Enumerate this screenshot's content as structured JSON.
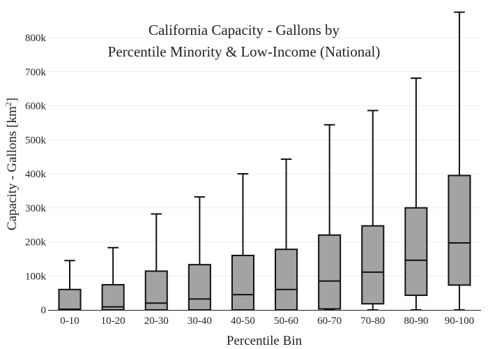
{
  "chart_data": {
    "type": "box",
    "title_lines": [
      "California Capacity - Gallons by",
      "Percentile Minority & Low-Income (National)"
    ],
    "xlabel": "Percentile Bin",
    "ylabel_main": "Capacity - Gallons  [km",
    "ylabel_sup": "2",
    "ylabel_end": "]",
    "ylim": [
      0,
      880000
    ],
    "yticks": [
      0,
      100000,
      200000,
      300000,
      400000,
      500000,
      600000,
      700000,
      800000
    ],
    "ytick_labels": [
      "0",
      "100k",
      "200k",
      "300k",
      "400k",
      "500k",
      "600k",
      "700k",
      "800k"
    ],
    "grid": true,
    "box_color": "#a3a3a3",
    "line_color": "#111111",
    "categories": [
      "0-10",
      "10-20",
      "20-30",
      "30-40",
      "40-50",
      "50-60",
      "60-70",
      "70-80",
      "80-90",
      "90-100"
    ],
    "boxes": [
      {
        "category": "0-10",
        "min": 0,
        "q1": 0,
        "median": 2000,
        "q3": 60000,
        "max": 145000
      },
      {
        "category": "10-20",
        "min": 0,
        "q1": 0,
        "median": 9000,
        "q3": 74000,
        "max": 183000
      },
      {
        "category": "20-30",
        "min": 0,
        "q1": 0,
        "median": 20000,
        "q3": 114000,
        "max": 282000
      },
      {
        "category": "30-40",
        "min": 0,
        "q1": 0,
        "median": 32000,
        "q3": 133000,
        "max": 332000
      },
      {
        "category": "40-50",
        "min": 0,
        "q1": 0,
        "median": 45000,
        "q3": 160000,
        "max": 400000
      },
      {
        "category": "50-60",
        "min": 0,
        "q1": 0,
        "median": 60000,
        "q3": 178000,
        "max": 443000
      },
      {
        "category": "60-70",
        "min": 0,
        "q1": 3000,
        "median": 85000,
        "q3": 220000,
        "max": 544000
      },
      {
        "category": "70-80",
        "min": 0,
        "q1": 18000,
        "median": 111000,
        "q3": 247000,
        "max": 586000
      },
      {
        "category": "80-90",
        "min": 0,
        "q1": 43000,
        "median": 146000,
        "q3": 300000,
        "max": 681000
      },
      {
        "category": "90-100",
        "min": 0,
        "q1": 73000,
        "median": 197000,
        "q3": 395000,
        "max": 875000
      }
    ]
  }
}
